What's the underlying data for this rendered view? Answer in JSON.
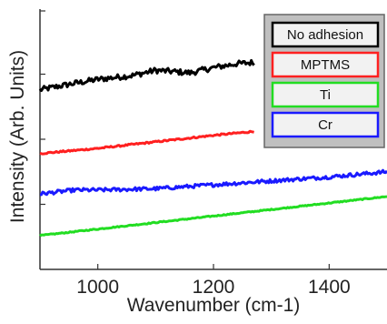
{
  "chart_data": {
    "type": "line",
    "title": "",
    "xlabel": "Wavenumber (cm-1)",
    "ylabel": "Intensity (Arb. Units)",
    "xlim": [
      900,
      1500
    ],
    "ylim": [
      0,
      10
    ],
    "x_ticks": [
      1000,
      1200,
      1400
    ],
    "y_tick_labels_shown": false,
    "grid": false,
    "legend_position": "top-right",
    "series": [
      {
        "name": "No adhesion",
        "color": "#000000",
        "noise": 0.22,
        "points": [
          [
            900,
            6.9
          ],
          [
            960,
            7.15
          ],
          [
            1000,
            7.3
          ],
          [
            1060,
            7.45
          ],
          [
            1100,
            7.65
          ],
          [
            1160,
            7.55
          ],
          [
            1200,
            7.75
          ],
          [
            1240,
            7.9
          ],
          [
            1270,
            7.95
          ]
        ]
      },
      {
        "name": "MPTMS",
        "color": "#ff2020",
        "noise": 0.06,
        "points": [
          [
            900,
            4.45
          ],
          [
            1000,
            4.65
          ],
          [
            1100,
            4.9
          ],
          [
            1200,
            5.15
          ],
          [
            1270,
            5.3
          ]
        ]
      },
      {
        "name": "Ti",
        "color": "#22dd22",
        "noise": 0.04,
        "points": [
          [
            900,
            1.3
          ],
          [
            1000,
            1.55
          ],
          [
            1100,
            1.8
          ],
          [
            1200,
            2.05
          ],
          [
            1300,
            2.3
          ],
          [
            1400,
            2.55
          ],
          [
            1500,
            2.8
          ]
        ]
      },
      {
        "name": "Cr",
        "color": "#1a1aff",
        "noise": 0.14,
        "points": [
          [
            900,
            2.9
          ],
          [
            960,
            3.05
          ],
          [
            1000,
            3.05
          ],
          [
            1100,
            3.1
          ],
          [
            1200,
            3.25
          ],
          [
            1300,
            3.4
          ],
          [
            1400,
            3.55
          ],
          [
            1500,
            3.75
          ]
        ]
      }
    ]
  }
}
